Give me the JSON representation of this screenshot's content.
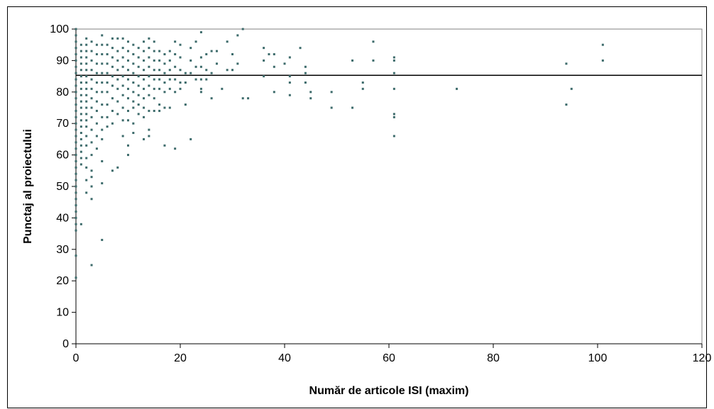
{
  "chart_data": {
    "type": "scatter",
    "title": "",
    "xlabel": "Număr de articole ISI (maxim)",
    "ylabel": "Punctaj al proiectului",
    "xlim": [
      0,
      120
    ],
    "ylim": [
      0,
      100
    ],
    "xticks": [
      "0",
      "20",
      "40",
      "60",
      "80",
      "100",
      "120"
    ],
    "yticks": [
      "0",
      "10",
      "20",
      "30",
      "40",
      "50",
      "60",
      "70",
      "80",
      "90",
      "100"
    ],
    "grid": false,
    "legend": "none",
    "marker_color": "#3d6b6b",
    "reference_line": {
      "y": 85.3,
      "color": "#000000"
    },
    "series": [
      {
        "points": [
          [
            0,
            100
          ],
          [
            0,
            98
          ],
          [
            0,
            96
          ],
          [
            0,
            94
          ],
          [
            0,
            92
          ],
          [
            0,
            90
          ],
          [
            0,
            88
          ],
          [
            0,
            86
          ],
          [
            0,
            84
          ],
          [
            0,
            82
          ],
          [
            0,
            80
          ],
          [
            0,
            78
          ],
          [
            0,
            76
          ],
          [
            0,
            74
          ],
          [
            0,
            72
          ],
          [
            0,
            70
          ],
          [
            0,
            68
          ],
          [
            0,
            66
          ],
          [
            0,
            64
          ],
          [
            0,
            62
          ],
          [
            0,
            60
          ],
          [
            0,
            58
          ],
          [
            0,
            56
          ],
          [
            0,
            54
          ],
          [
            0,
            52
          ],
          [
            0,
            50
          ],
          [
            0,
            48
          ],
          [
            0,
            46
          ],
          [
            0,
            44
          ],
          [
            0,
            42
          ],
          [
            0,
            40
          ],
          [
            0,
            38
          ],
          [
            0,
            36
          ],
          [
            0,
            28
          ],
          [
            0,
            21
          ],
          [
            1,
            95
          ],
          [
            1,
            93
          ],
          [
            1,
            91
          ],
          [
            1,
            89
          ],
          [
            1,
            87
          ],
          [
            1,
            85
          ],
          [
            1,
            83
          ],
          [
            1,
            81
          ],
          [
            1,
            79
          ],
          [
            1,
            77
          ],
          [
            1,
            75
          ],
          [
            1,
            73
          ],
          [
            1,
            71
          ],
          [
            1,
            69
          ],
          [
            1,
            67
          ],
          [
            1,
            65
          ],
          [
            1,
            63
          ],
          [
            1,
            61
          ],
          [
            1,
            59
          ],
          [
            1,
            57
          ],
          [
            1,
            38
          ],
          [
            2,
            97
          ],
          [
            2,
            95
          ],
          [
            2,
            93
          ],
          [
            2,
            91
          ],
          [
            2,
            89
          ],
          [
            2,
            87
          ],
          [
            2,
            85
          ],
          [
            2,
            83
          ],
          [
            2,
            81
          ],
          [
            2,
            79
          ],
          [
            2,
            77
          ],
          [
            2,
            75
          ],
          [
            2,
            73
          ],
          [
            2,
            71
          ],
          [
            2,
            69
          ],
          [
            2,
            66
          ],
          [
            2,
            63
          ],
          [
            2,
            59
          ],
          [
            2,
            56
          ],
          [
            2,
            52
          ],
          [
            2,
            48
          ],
          [
            3,
            96
          ],
          [
            3,
            93
          ],
          [
            3,
            90
          ],
          [
            3,
            87
          ],
          [
            3,
            84
          ],
          [
            3,
            81
          ],
          [
            3,
            78
          ],
          [
            3,
            75
          ],
          [
            3,
            72
          ],
          [
            3,
            68
          ],
          [
            3,
            64
          ],
          [
            3,
            60
          ],
          [
            3,
            55
          ],
          [
            3,
            53
          ],
          [
            3,
            50
          ],
          [
            3,
            46
          ],
          [
            3,
            25
          ],
          [
            4,
            95
          ],
          [
            4,
            92
          ],
          [
            4,
            89
          ],
          [
            4,
            86
          ],
          [
            4,
            83
          ],
          [
            4,
            80
          ],
          [
            4,
            77
          ],
          [
            4,
            74
          ],
          [
            4,
            70
          ],
          [
            4,
            66
          ],
          [
            4,
            62
          ],
          [
            5,
            98
          ],
          [
            5,
            95
          ],
          [
            5,
            92
          ],
          [
            5,
            89
          ],
          [
            5,
            86
          ],
          [
            5,
            83
          ],
          [
            5,
            80
          ],
          [
            5,
            76
          ],
          [
            5,
            72
          ],
          [
            5,
            68
          ],
          [
            5,
            65
          ],
          [
            5,
            58
          ],
          [
            5,
            51
          ],
          [
            5,
            33
          ],
          [
            6,
            95
          ],
          [
            6,
            92
          ],
          [
            6,
            89
          ],
          [
            6,
            86
          ],
          [
            6,
            83
          ],
          [
            6,
            80
          ],
          [
            6,
            76
          ],
          [
            6,
            72
          ],
          [
            6,
            69
          ],
          [
            7,
            97
          ],
          [
            7,
            94
          ],
          [
            7,
            91
          ],
          [
            7,
            88
          ],
          [
            7,
            85
          ],
          [
            7,
            82
          ],
          [
            7,
            78
          ],
          [
            7,
            74
          ],
          [
            7,
            70
          ],
          [
            7,
            55
          ],
          [
            8,
            97
          ],
          [
            8,
            93
          ],
          [
            8,
            90
          ],
          [
            8,
            87
          ],
          [
            8,
            84
          ],
          [
            8,
            81
          ],
          [
            8,
            77
          ],
          [
            8,
            73
          ],
          [
            8,
            56
          ],
          [
            9,
            97
          ],
          [
            9,
            94
          ],
          [
            9,
            91
          ],
          [
            9,
            88
          ],
          [
            9,
            85
          ],
          [
            9,
            82
          ],
          [
            9,
            79
          ],
          [
            9,
            75
          ],
          [
            9,
            71
          ],
          [
            9,
            66
          ],
          [
            10,
            96
          ],
          [
            10,
            93
          ],
          [
            10,
            90
          ],
          [
            10,
            87
          ],
          [
            10,
            84
          ],
          [
            10,
            81
          ],
          [
            10,
            78
          ],
          [
            10,
            74
          ],
          [
            10,
            71
          ],
          [
            10,
            63
          ],
          [
            10,
            60
          ],
          [
            11,
            95
          ],
          [
            11,
            92
          ],
          [
            11,
            89
          ],
          [
            11,
            86
          ],
          [
            11,
            83
          ],
          [
            11,
            80
          ],
          [
            11,
            77
          ],
          [
            11,
            75
          ],
          [
            11,
            70
          ],
          [
            11,
            67
          ],
          [
            12,
            94
          ],
          [
            12,
            91
          ],
          [
            12,
            88
          ],
          [
            12,
            85
          ],
          [
            12,
            82
          ],
          [
            12,
            79
          ],
          [
            12,
            76
          ],
          [
            12,
            73
          ],
          [
            13,
            96
          ],
          [
            13,
            93
          ],
          [
            13,
            90
          ],
          [
            13,
            87
          ],
          [
            13,
            84
          ],
          [
            13,
            81
          ],
          [
            13,
            78
          ],
          [
            13,
            75
          ],
          [
            13,
            72
          ],
          [
            13,
            65
          ],
          [
            14,
            97
          ],
          [
            14,
            94
          ],
          [
            14,
            91
          ],
          [
            14,
            88
          ],
          [
            14,
            85
          ],
          [
            14,
            82
          ],
          [
            14,
            79
          ],
          [
            14,
            74
          ],
          [
            14,
            68
          ],
          [
            14,
            66
          ],
          [
            15,
            96
          ],
          [
            15,
            93
          ],
          [
            15,
            90
          ],
          [
            15,
            87
          ],
          [
            15,
            84
          ],
          [
            15,
            81
          ],
          [
            15,
            78
          ],
          [
            15,
            74
          ],
          [
            16,
            93
          ],
          [
            16,
            90
          ],
          [
            16,
            87
          ],
          [
            16,
            84
          ],
          [
            16,
            81
          ],
          [
            16,
            76
          ],
          [
            16,
            74
          ],
          [
            17,
            92
          ],
          [
            17,
            89
          ],
          [
            17,
            86
          ],
          [
            17,
            83
          ],
          [
            17,
            80
          ],
          [
            17,
            75
          ],
          [
            17,
            63
          ],
          [
            18,
            93
          ],
          [
            18,
            90
          ],
          [
            18,
            87
          ],
          [
            18,
            84
          ],
          [
            18,
            81
          ],
          [
            18,
            75
          ],
          [
            19,
            96
          ],
          [
            19,
            92
          ],
          [
            19,
            88
          ],
          [
            19,
            84
          ],
          [
            19,
            80
          ],
          [
            19,
            62
          ],
          [
            20,
            95
          ],
          [
            20,
            91
          ],
          [
            20,
            87
          ],
          [
            20,
            83
          ],
          [
            20,
            81
          ],
          [
            21,
            86
          ],
          [
            21,
            83
          ],
          [
            21,
            76
          ],
          [
            22,
            94
          ],
          [
            22,
            90
          ],
          [
            22,
            86
          ],
          [
            22,
            65
          ],
          [
            23,
            96
          ],
          [
            23,
            88
          ],
          [
            23,
            84
          ],
          [
            24,
            99
          ],
          [
            24,
            91
          ],
          [
            24,
            88
          ],
          [
            24,
            84
          ],
          [
            24,
            81
          ],
          [
            24,
            80
          ],
          [
            25,
            92
          ],
          [
            25,
            87
          ],
          [
            25,
            84
          ],
          [
            26,
            93
          ],
          [
            26,
            86
          ],
          [
            26,
            78
          ],
          [
            27,
            93
          ],
          [
            27,
            89
          ],
          [
            28,
            81
          ],
          [
            29,
            96
          ],
          [
            29,
            87
          ],
          [
            30,
            92
          ],
          [
            30,
            87
          ],
          [
            31,
            98
          ],
          [
            31,
            89
          ],
          [
            32,
            100
          ],
          [
            32,
            78
          ],
          [
            33,
            78
          ],
          [
            36,
            94
          ],
          [
            36,
            90
          ],
          [
            36,
            85
          ],
          [
            37,
            92
          ],
          [
            38,
            92
          ],
          [
            38,
            88
          ],
          [
            38,
            80
          ],
          [
            40,
            89
          ],
          [
            41,
            91
          ],
          [
            41,
            85
          ],
          [
            41,
            83
          ],
          [
            41,
            79
          ],
          [
            43,
            94
          ],
          [
            44,
            88
          ],
          [
            44,
            86
          ],
          [
            44,
            83
          ],
          [
            45,
            80
          ],
          [
            45,
            78
          ],
          [
            49,
            80
          ],
          [
            49,
            75
          ],
          [
            53,
            90
          ],
          [
            53,
            75
          ],
          [
            55,
            83
          ],
          [
            55,
            81
          ],
          [
            57,
            96
          ],
          [
            57,
            90
          ],
          [
            61,
            91
          ],
          [
            61,
            90
          ],
          [
            61,
            86
          ],
          [
            61,
            81
          ],
          [
            61,
            73
          ],
          [
            61,
            72
          ],
          [
            61,
            66
          ],
          [
            73,
            81
          ],
          [
            94,
            89
          ],
          [
            94,
            76
          ],
          [
            95,
            81
          ],
          [
            101,
            95
          ],
          [
            101,
            90
          ]
        ]
      }
    ]
  }
}
